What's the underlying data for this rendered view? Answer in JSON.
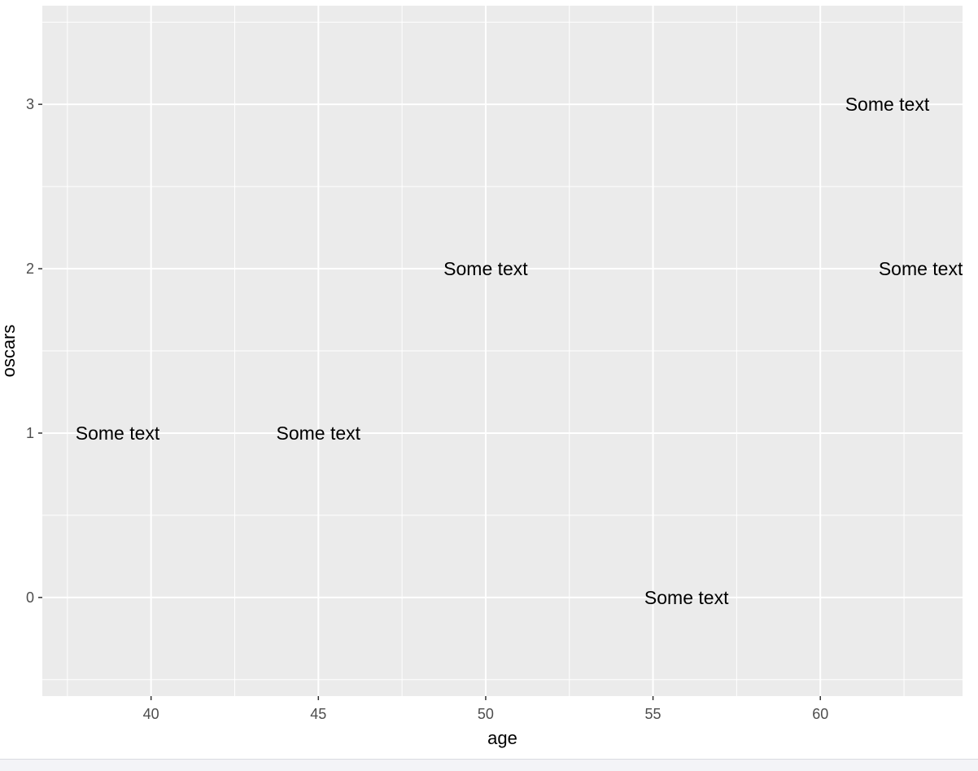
{
  "chart_data": {
    "type": "scatter",
    "xlabel": "age",
    "ylabel": "oscars",
    "xlim": [
      36.75,
      64.25
    ],
    "ylim": [
      -0.6,
      3.6
    ],
    "x_ticks": [
      40,
      45,
      50,
      55,
      60
    ],
    "x_tick_labels": [
      "40",
      "45",
      "50",
      "55",
      "60"
    ],
    "y_ticks": [
      0,
      1,
      2,
      3
    ],
    "y_tick_labels": [
      "0",
      "1",
      "2",
      "3"
    ],
    "grid": true,
    "points": [
      {
        "x": 39,
        "y": 1,
        "label": "Some text"
      },
      {
        "x": 45,
        "y": 1,
        "label": "Some text"
      },
      {
        "x": 50,
        "y": 2,
        "label": "Some text"
      },
      {
        "x": 56,
        "y": 0,
        "label": "Some text"
      },
      {
        "x": 62,
        "y": 3,
        "label": "Some text"
      },
      {
        "x": 63,
        "y": 2,
        "label": "Some text"
      }
    ],
    "colors": {
      "panel": "#ebebeb",
      "grid": "#ffffff",
      "text": "#000000",
      "tick_text": "#4d4d4d",
      "tick_mark": "#333333"
    }
  }
}
